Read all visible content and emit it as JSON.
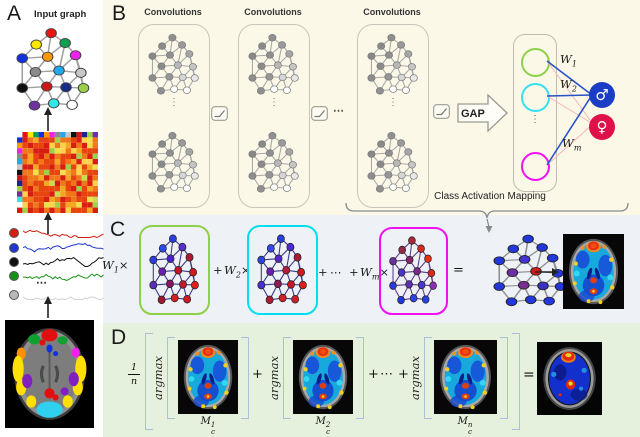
{
  "figure": {
    "panel_a": {
      "label": "A",
      "title": "Input graph",
      "series_dots": "⋯",
      "node_palette": [
        "#e81212",
        "#ffe800",
        "#10a050",
        "#1030e8",
        "#ff9800",
        "#f020f0",
        "#8a8a8a",
        "#20a8f0",
        "#c8c8c8",
        "#101010",
        "#cc1818",
        "#182a88",
        "#98d048",
        "#7030a0",
        "#30e8e8",
        "#ffffff"
      ],
      "timeseries_colors": [
        "#d42010",
        "#2038d0",
        "#101010",
        "#189018",
        "#b8b8b8"
      ]
    },
    "panel_b": {
      "label": "B",
      "conv_label": "Convolutions",
      "between_dots": "⋯",
      "stack_dots": "⋮⋮",
      "gap_label": "GAP",
      "weights": [
        {
          "base": "W",
          "sub": "1"
        },
        {
          "base": "W",
          "sub": "2"
        },
        {
          "base": "W",
          "sub": "m"
        }
      ],
      "output_dots": "⋮",
      "male": {
        "symbol": "♂"
      },
      "female": {
        "symbol": "♀"
      },
      "cam_label": "Class Activation Mapping"
    },
    "panel_c": {
      "label": "C",
      "w1": {
        "base": "W",
        "sub": "1",
        "times": "×"
      },
      "w2": {
        "base": "W",
        "sub": "2",
        "times": "×"
      },
      "wm": {
        "base": "W",
        "sub": "m",
        "times": "×"
      },
      "plus": "+",
      "dots": "⋯",
      "equals": "="
    },
    "panel_d": {
      "label": "D",
      "coef_num": "1",
      "coef_den": "n",
      "argmax": "argmax",
      "plus": "+",
      "dots": "⋯",
      "equals": "=",
      "maps": [
        {
          "base": "M",
          "sub": "c",
          "sup": "1"
        },
        {
          "base": "M",
          "sub": "c",
          "sup": "2"
        },
        {
          "base": "M",
          "sub": "c",
          "sup": "n"
        }
      ]
    }
  },
  "colors": {
    "panel_b_bg": "#fbf8e8",
    "panel_c_bg": "#eef1f5",
    "panel_d_bg": "#e5f1dc",
    "male_class": "#1b3cc4",
    "female_class": "#e01048",
    "pos_weight_line": "#2a52c8",
    "neg_weight_line": "#f2b6bc",
    "box_green": "#8ed04a",
    "box_cyan": "#00dff0",
    "box_magenta": "#f010f0",
    "bracket": "#a9c0d8"
  },
  "graphs": {
    "input": {
      "edge": "#a0a0a0",
      "stroke": "#444",
      "nodes": [
        "#e81212",
        "#ffe800",
        "#10a050",
        "#1030e8",
        "#ff9800",
        "#f020f0",
        "#8a8a8a",
        "#20a8f0",
        "#c8c8c8",
        "#101010",
        "#cc1818",
        "#182a88",
        "#98d048",
        "#7030a0",
        "#30e8e8",
        "#ffffff"
      ]
    },
    "conv": {
      "edge": "#a8a8a8",
      "stroke": "#7a7a7a",
      "nodes": [
        "#909090",
        "#8a8a8a",
        "#9a9a9a",
        "#888888",
        "#8f8f8f",
        "#a5a5a5",
        "#8a8a8a",
        "#b8b8b8",
        "#c5c5c5",
        "#8d8d8d",
        "#969696",
        "#d5d5d5",
        "#e8e8e8",
        "#909090",
        "#ffffff",
        "#fdfdfd"
      ]
    },
    "cam1": {
      "edge": "#3a3a8c",
      "stroke": "#222",
      "nodes": [
        "#2a3de0",
        "#2a4be8",
        "#5a2fd0",
        "#2a3de0",
        "#4a23c8",
        "#b01830",
        "#6a1fb0",
        "#c41428",
        "#d01a20",
        "#5a2fb8",
        "#8a1560",
        "#c41830",
        "#e02020",
        "#a01830",
        "#d62020",
        "#cc1c28"
      ]
    },
    "cam2": {
      "edge": "#3a3a8c",
      "stroke": "#222",
      "nodes": [
        "#2a3de0",
        "#3348e8",
        "#4a2bd4",
        "#2a44e4",
        "#5526cc",
        "#a81a38",
        "#6a1fb0",
        "#b81a40",
        "#d01a20",
        "#4a2fd0",
        "#901a58",
        "#c81828",
        "#dd1f1f",
        "#b01a30",
        "#d02028",
        "#c81e30"
      ]
    },
    "camm": {
      "edge": "#5a3a8c",
      "stroke": "#222",
      "nodes": [
        "#a82838",
        "#902a48",
        "#e02818",
        "#6a2f9a",
        "#8a2668",
        "#e83010",
        "#4a34c8",
        "#7a2a88",
        "#d82a20",
        "#2a3ae0",
        "#5a2fb0",
        "#4a38c8",
        "#8a30b0",
        "#2038e0",
        "#2a44e8",
        "#2840e0"
      ]
    },
    "result": {
      "edge": "#909090",
      "stroke": "#222",
      "nodes": [
        "#2238dc",
        "#2238dc",
        "#2238dc",
        "#2238dc",
        "#4433cc",
        "#2238dc",
        "#6a2fa8",
        "#d41818",
        "#2238dc",
        "#2238dc",
        "#7a3090",
        "#3a30c8",
        "#2238dc",
        "#2238dc",
        "#2238dc",
        "#2238dc"
      ]
    }
  }
}
